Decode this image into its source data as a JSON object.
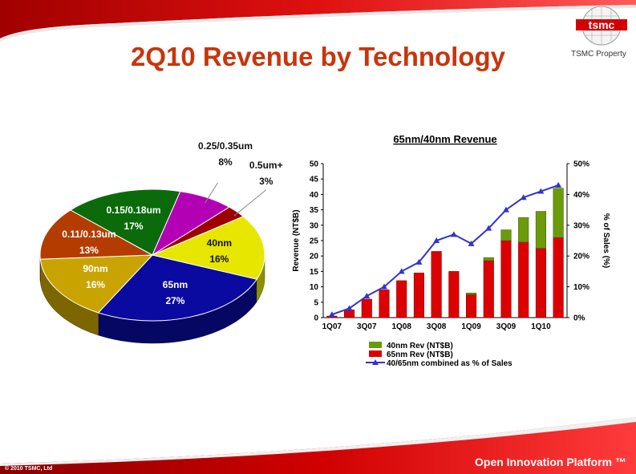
{
  "slide": {
    "title": "2Q10 Revenue by Technology",
    "logo_text": "tsmc",
    "logo_caption": "TSMC Property",
    "copyright": "© 2010 TSMC, Ltd",
    "footer_tagline": "Open Innovation Platform ™",
    "colors": {
      "title": "#c8350c",
      "footer": "#cc0000"
    }
  },
  "chart_data": [
    {
      "type": "pie",
      "title": "",
      "slices": [
        {
          "label": "65nm",
          "value": 27,
          "value_label": "27%",
          "color": "#0a0aa0"
        },
        {
          "label": "90nm",
          "value": 16,
          "value_label": "16%",
          "color": "#c9a400"
        },
        {
          "label": "0.11/0.13um",
          "value": 13,
          "value_label": "13%",
          "color": "#b43c00"
        },
        {
          "label": "0.15/0.18um",
          "value": 17,
          "value_label": "17%",
          "color": "#0b6b0b"
        },
        {
          "label": "0.25/0.35um",
          "value": 8,
          "value_label": "8%",
          "color": "#b400b4"
        },
        {
          "label": "0.5um+",
          "value": 3,
          "value_label": "3%",
          "color": "#9c0000"
        },
        {
          "label": "40nm",
          "value": 16,
          "value_label": "16%",
          "color": "#e6e600"
        }
      ]
    },
    {
      "type": "bar",
      "title": "65nm/40nm Revenue",
      "ylabel": "Revenue (NT$B)",
      "y2label": "% of Sales (%)",
      "ylim": [
        0,
        50
      ],
      "y2lim": [
        0,
        50
      ],
      "yticks": [
        "0",
        "5",
        "10",
        "15",
        "20",
        "25",
        "30",
        "35",
        "40",
        "45",
        "50"
      ],
      "y2ticks": [
        "0%",
        "10%",
        "20%",
        "30%",
        "40%",
        "50%"
      ],
      "categories": [
        "1Q07",
        "2Q07",
        "3Q07",
        "4Q07",
        "1Q08",
        "2Q08",
        "3Q08",
        "4Q08",
        "1Q09",
        "2Q09",
        "3Q09",
        "4Q09",
        "1Q10",
        "2Q10"
      ],
      "xtick_labels": [
        "1Q07",
        "",
        "3Q07",
        "",
        "1Q08",
        "",
        "3Q08",
        "",
        "1Q09",
        "",
        "3Q09",
        "",
        "1Q10",
        ""
      ],
      "series": [
        {
          "name": "40nm Rev (NT$B)",
          "kind": "bar",
          "stacked": true,
          "color": "#6b9a0a",
          "values": [
            0,
            0,
            0,
            0,
            0,
            0,
            0,
            0,
            0.5,
            1,
            3.5,
            8,
            12,
            16
          ]
        },
        {
          "name": "65nm Rev (NT$B)",
          "kind": "bar",
          "stacked": true,
          "color": "#dd0000",
          "values": [
            0.5,
            2.5,
            6,
            9,
            12,
            14.5,
            21.5,
            15,
            7.5,
            18.5,
            25,
            24.5,
            22.5,
            26
          ]
        },
        {
          "name": "40/65nm combined as % of Sales",
          "kind": "line",
          "axis": "right",
          "color": "#3333cc",
          "values": [
            1,
            3,
            7,
            10,
            15,
            18,
            25,
            27,
            24,
            29,
            35,
            39,
            41,
            43
          ]
        }
      ],
      "legend_position": "bottom"
    }
  ]
}
